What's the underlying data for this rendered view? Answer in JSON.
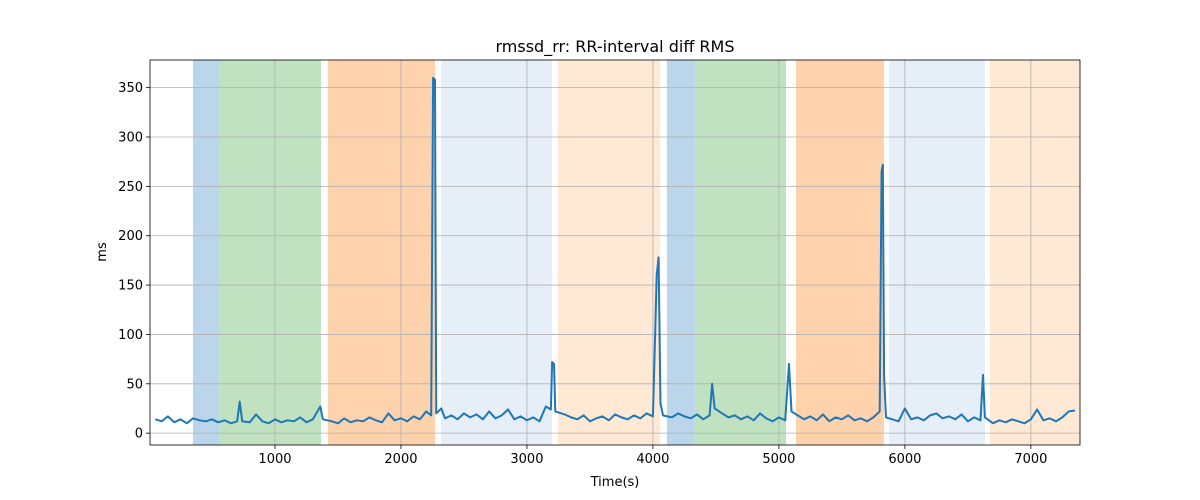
{
  "chart_data": {
    "type": "line",
    "title": "rmssd_rr: RR-interval diff RMS",
    "xlabel": "Time(s)",
    "ylabel": "ms",
    "xlim": [
      8,
      7390
    ],
    "ylim": [
      -12,
      378
    ],
    "xticks": [
      1000,
      2000,
      3000,
      4000,
      5000,
      6000,
      7000
    ],
    "yticks": [
      0,
      50,
      100,
      150,
      200,
      250,
      300,
      350
    ],
    "grid": true,
    "spans": [
      {
        "start": 349,
        "end": 556,
        "color": "#bbd6ea"
      },
      {
        "start": 556,
        "end": 1365,
        "color": "#c0e2c0"
      },
      {
        "start": 1421,
        "end": 2270,
        "color": "#ffd2ae"
      },
      {
        "start": 2317,
        "end": 3198,
        "color": "#e6eef8"
      },
      {
        "start": 3246,
        "end": 4056,
        "color": "#ffe8d4"
      },
      {
        "start": 4111,
        "end": 4333,
        "color": "#bbd6ea"
      },
      {
        "start": 4333,
        "end": 5056,
        "color": "#c0e2c0"
      },
      {
        "start": 5135,
        "end": 5833,
        "color": "#ffd2ae"
      },
      {
        "start": 5873,
        "end": 6635,
        "color": "#e6eef8"
      },
      {
        "start": 6675,
        "end": 7390,
        "color": "#ffe8d4"
      }
    ],
    "series": [
      {
        "color": "#1f77b4",
        "x": [
          50,
          100,
          150,
          200,
          250,
          300,
          350,
          400,
          450,
          500,
          550,
          600,
          650,
          700,
          720,
          740,
          800,
          850,
          900,
          950,
          1000,
          1050,
          1100,
          1150,
          1200,
          1250,
          1300,
          1360,
          1380,
          1450,
          1500,
          1550,
          1600,
          1650,
          1700,
          1750,
          1800,
          1850,
          1900,
          1950,
          2000,
          2050,
          2100,
          2150,
          2200,
          2240,
          2255,
          2270,
          2280,
          2320,
          2350,
          2400,
          2450,
          2500,
          2550,
          2600,
          2650,
          2700,
          2750,
          2800,
          2850,
          2900,
          2950,
          3000,
          3050,
          3100,
          3150,
          3190,
          3200,
          3215,
          3225,
          3300,
          3350,
          3400,
          3450,
          3500,
          3550,
          3600,
          3650,
          3700,
          3750,
          3800,
          3850,
          3900,
          3950,
          4000,
          4030,
          4045,
          4060,
          4080,
          4150,
          4200,
          4250,
          4300,
          4350,
          4400,
          4450,
          4470,
          4490,
          4550,
          4600,
          4650,
          4700,
          4750,
          4800,
          4850,
          4900,
          4950,
          5000,
          5050,
          5080,
          5100,
          5150,
          5200,
          5250,
          5300,
          5350,
          5400,
          5450,
          5500,
          5550,
          5600,
          5650,
          5700,
          5750,
          5800,
          5815,
          5825,
          5835,
          5850,
          5900,
          5950,
          6000,
          6050,
          6100,
          6150,
          6200,
          6250,
          6300,
          6350,
          6400,
          6450,
          6500,
          6550,
          6600,
          6620,
          6635,
          6700,
          6750,
          6800,
          6850,
          6900,
          6950,
          7000,
          7050,
          7100,
          7150,
          7200,
          7250,
          7300,
          7350
        ],
        "values": [
          14,
          12,
          17,
          11,
          14,
          10,
          15,
          13,
          12,
          14,
          11,
          13,
          10,
          12,
          32,
          12,
          11,
          19,
          12,
          10,
          14,
          11,
          13,
          12,
          16,
          11,
          14,
          27,
          14,
          12,
          10,
          15,
          11,
          13,
          12,
          16,
          13,
          11,
          20,
          13,
          15,
          12,
          17,
          14,
          22,
          18,
          360,
          358,
          20,
          25,
          15,
          18,
          14,
          20,
          16,
          19,
          14,
          22,
          15,
          18,
          24,
          14,
          17,
          13,
          16,
          12,
          27,
          24,
          72,
          70,
          22,
          19,
          16,
          14,
          18,
          12,
          15,
          17,
          13,
          19,
          16,
          14,
          18,
          15,
          20,
          17,
          160,
          178,
          30,
          18,
          16,
          20,
          17,
          15,
          19,
          14,
          18,
          50,
          25,
          20,
          16,
          18,
          14,
          17,
          13,
          20,
          15,
          12,
          16,
          13,
          70,
          22,
          18,
          14,
          17,
          13,
          19,
          12,
          16,
          14,
          18,
          13,
          15,
          12,
          16,
          22,
          265,
          272,
          58,
          16,
          14,
          12,
          25,
          14,
          16,
          13,
          18,
          20,
          15,
          17,
          14,
          19,
          12,
          16,
          13,
          59,
          16,
          10,
          13,
          11,
          14,
          12,
          10,
          14,
          24,
          13,
          15,
          12,
          16,
          22,
          23
        ]
      }
    ]
  }
}
